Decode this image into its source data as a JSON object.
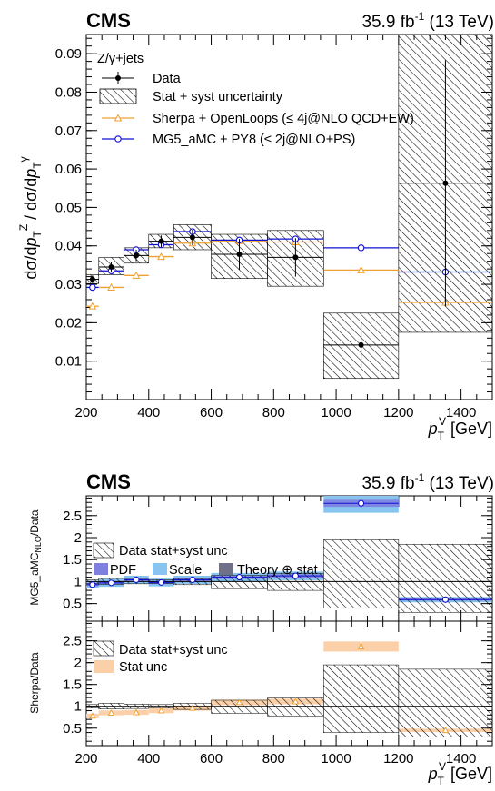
{
  "top": {
    "cms_label": "CMS",
    "lumi_label": "35.9 fb",
    "lumi_exp": "-1",
    "lumi_energy": " (13 TeV)",
    "ylabel": "dσ/dp_T^Z / dσ/dp_T^γ",
    "xlabel": "p_T^V [GeV]",
    "annotation": "Z/γ+jets",
    "legend": [
      {
        "key": "data",
        "label": "Data"
      },
      {
        "key": "unc",
        "label": "Stat + syst uncertainty"
      },
      {
        "key": "sherpa",
        "label": "Sherpa + OpenLoops (≤ 4j@NLO QCD+EW)"
      },
      {
        "key": "mg5",
        "label": "MG5_aMC + PY8 (≤ 2j@NLO+PS)"
      }
    ]
  },
  "bottom": {
    "cms_label": "CMS",
    "lumi_label": "35.9 fb",
    "lumi_exp": "-1",
    "lumi_energy": " (13 TeV)",
    "ylabel_upper": "MG5_aMC_NLO/Data",
    "ylabel_lower": "Sherpa/Data",
    "xlabel": "p_T^V [GeV]",
    "legend_upper": [
      "Data stat+syst unc",
      "PDF",
      "Scale",
      "Theory ⊕ stat"
    ],
    "legend_lower": [
      "Data stat+syst unc",
      "Stat unc"
    ]
  },
  "colors": {
    "sherpa": "#f0a030",
    "mg5": "#1010d0",
    "pdf": "#7f7fe0",
    "scale": "#87c5f0",
    "theory": "#707088",
    "stat_unc": "#fbd0a8"
  },
  "chart_data": [
    {
      "type": "line",
      "title": "",
      "xlabel": "p_T^V [GeV]",
      "ylabel": "dσ/dp_T^Z / dσ/dp_T^γ",
      "xlim": [
        200,
        1500
      ],
      "ylim": [
        0,
        0.095
      ],
      "x_ticks": [
        "200",
        "400",
        "600",
        "800",
        "1000",
        "1200",
        "1400"
      ],
      "y_ticks": [
        "0.01",
        "0.02",
        "0.03",
        "0.04",
        "0.05",
        "0.06",
        "0.07",
        "0.08",
        "0.09"
      ],
      "bins": [
        [
          200,
          240
        ],
        [
          240,
          320
        ],
        [
          320,
          400
        ],
        [
          400,
          480
        ],
        [
          480,
          600
        ],
        [
          600,
          780
        ],
        [
          780,
          960
        ],
        [
          960,
          1200
        ],
        [
          1200,
          1500
        ]
      ],
      "series": [
        {
          "name": "Data",
          "x": [
            220,
            280,
            360,
            440,
            540,
            690,
            870,
            1080,
            1350
          ],
          "values": [
            0.0313,
            0.0345,
            0.0375,
            0.0412,
            0.0422,
            0.0378,
            0.037,
            0.0142,
            0.0563
          ],
          "err": [
            0.001,
            0.0012,
            0.0015,
            0.0015,
            0.002,
            0.004,
            0.005,
            0.006,
            0.032
          ],
          "band_lo": [
            0.0302,
            0.0325,
            0.0355,
            0.0395,
            0.039,
            0.0315,
            0.0295,
            0.0055,
            0.0175
          ],
          "band_hi": [
            0.0325,
            0.037,
            0.0395,
            0.043,
            0.0455,
            0.043,
            0.044,
            0.0225,
            0.095
          ]
        },
        {
          "name": "Sherpa + OpenLoops (≤ 4j@NLO QCD+EW)",
          "x": [
            220,
            280,
            360,
            440,
            540,
            690,
            870,
            1080,
            1350
          ],
          "values": [
            0.0243,
            0.0292,
            0.0323,
            0.0372,
            0.0407,
            0.0413,
            0.041,
            0.0337,
            0.0253
          ]
        },
        {
          "name": "MG5_aMC + PY8 (≤ 2j@NLO+PS)",
          "x": [
            220,
            280,
            360,
            440,
            540,
            690,
            870,
            1080,
            1350
          ],
          "values": [
            0.0292,
            0.0335,
            0.039,
            0.0403,
            0.0437,
            0.0415,
            0.0418,
            0.0395,
            0.0332
          ]
        }
      ]
    },
    {
      "type": "bar",
      "title": "",
      "ylabel": "MG5_aMC_NLO/Data",
      "xlim": [
        200,
        1500
      ],
      "ylim": [
        0.1,
        2.95
      ],
      "y_ticks": [
        "0.5",
        "1",
        "1.5",
        "2",
        "2.5"
      ],
      "bins": [
        [
          200,
          240
        ],
        [
          240,
          320
        ],
        [
          320,
          400
        ],
        [
          400,
          480
        ],
        [
          480,
          600
        ],
        [
          600,
          780
        ],
        [
          780,
          960
        ],
        [
          960,
          1200
        ],
        [
          1200,
          1500
        ]
      ],
      "series": [
        {
          "name": "MG5_aMC_NLO/Data",
          "x": [
            220,
            280,
            360,
            440,
            540,
            690,
            870,
            1080,
            1350
          ],
          "values": [
            0.93,
            0.97,
            1.04,
            0.98,
            1.04,
            1.1,
            1.13,
            2.78,
            0.59
          ]
        },
        {
          "name": "Data stat+syst unc",
          "lo": [
            0.96,
            0.94,
            0.95,
            0.96,
            0.93,
            0.84,
            0.8,
            0.4,
            0.3
          ],
          "hi": [
            1.04,
            1.07,
            1.05,
            1.04,
            1.07,
            1.14,
            1.19,
            1.95,
            1.85
          ]
        }
      ]
    },
    {
      "type": "bar",
      "title": "",
      "xlabel": "p_T^V [GeV]",
      "ylabel": "Sherpa/Data",
      "xlim": [
        200,
        1500
      ],
      "ylim": [
        0.1,
        2.95
      ],
      "x_ticks": [
        "200",
        "400",
        "600",
        "800",
        "1000",
        "1200",
        "1400"
      ],
      "y_ticks": [
        "0.5",
        "1",
        "1.5",
        "2",
        "2.5"
      ],
      "bins": [
        [
          200,
          240
        ],
        [
          240,
          320
        ],
        [
          320,
          400
        ],
        [
          400,
          480
        ],
        [
          480,
          600
        ],
        [
          600,
          780
        ],
        [
          780,
          960
        ],
        [
          960,
          1200
        ],
        [
          1200,
          1500
        ]
      ],
      "series": [
        {
          "name": "Sherpa/Data",
          "x": [
            220,
            280,
            360,
            440,
            540,
            690,
            870,
            1080,
            1350
          ],
          "values": [
            0.78,
            0.85,
            0.86,
            0.9,
            0.96,
            1.09,
            1.11,
            2.37,
            0.45
          ]
        },
        {
          "name": "Data stat+syst unc",
          "lo": [
            0.96,
            0.94,
            0.95,
            0.96,
            0.93,
            0.84,
            0.78,
            0.4,
            0.3
          ],
          "hi": [
            1.04,
            1.07,
            1.05,
            1.04,
            1.07,
            1.14,
            1.19,
            1.95,
            1.85
          ]
        }
      ]
    }
  ]
}
